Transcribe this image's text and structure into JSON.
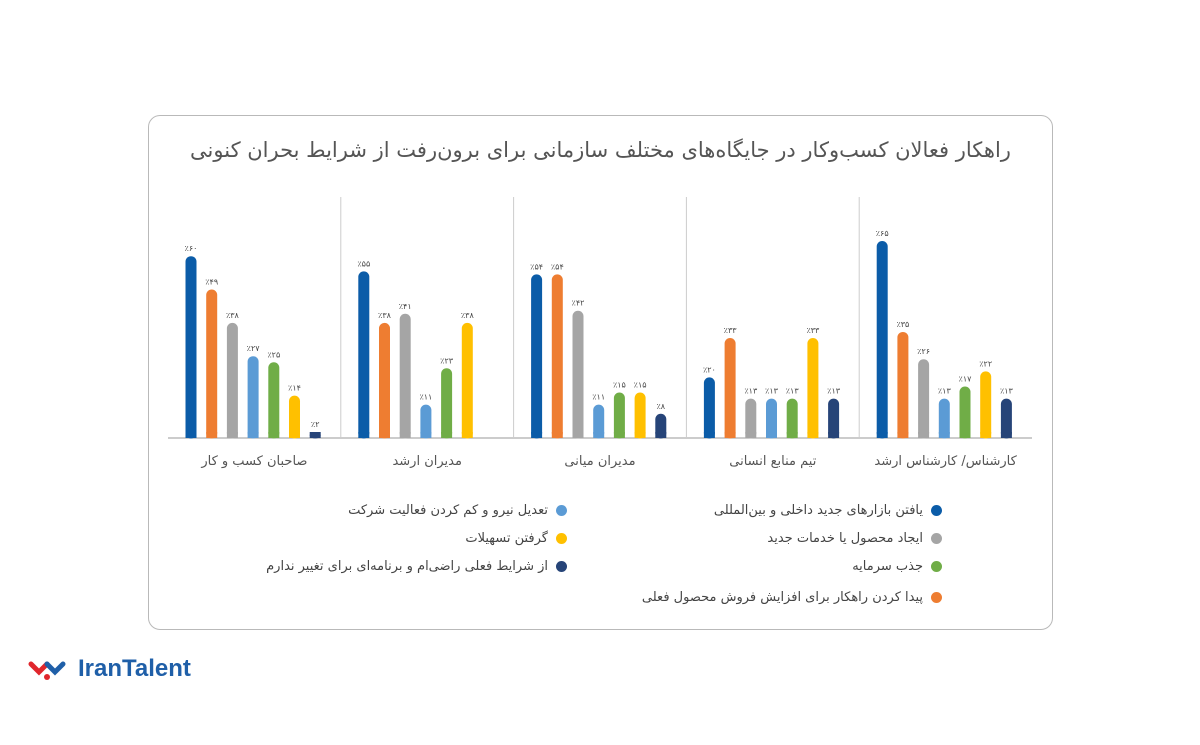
{
  "chart_data": {
    "type": "bar",
    "title": "راهکار فعالان کسب‌وکار در جایگاه‌های مختلف سازمانی برای برون‌رفت از شرایط بحران کنونی",
    "categories": [
      "صاحبان کسب و کار",
      "مدیران ارشد",
      "مدیران میانی",
      "تیم منابع انسانی",
      "کارشناس/ کارشناس ارشد"
    ],
    "unit": "٪",
    "ylim": [
      0,
      70
    ],
    "grid": false,
    "series": [
      {
        "name": "یافتن بازارهای جدید داخلی و بین‌المللی",
        "color": "#0b5ca8",
        "values": [
          60,
          55,
          54,
          20,
          65
        ]
      },
      {
        "name": "پیدا کردن راهکار برای افزایش فروش محصول فعلی",
        "color": "#ee7d31",
        "values": [
          49,
          38,
          54,
          33,
          35
        ]
      },
      {
        "name": "ایجاد محصول یا خدمات جدید",
        "color": "#a5a5a5",
        "values": [
          38,
          41,
          42,
          13,
          26
        ]
      },
      {
        "name": "تعدیل نیرو و کم کردن فعالیت شرکت",
        "color": "#5b9bd5",
        "values": [
          27,
          11,
          11,
          13,
          13
        ]
      },
      {
        "name": "جذب سرمایه",
        "color": "#70ad47",
        "values": [
          25,
          23,
          15,
          13,
          17
        ]
      },
      {
        "name": "گرفتن تسهیلات",
        "color": "#ffc000",
        "values": [
          14,
          38,
          15,
          33,
          22
        ]
      },
      {
        "name": "از شرایط فعلی راضی‌ام و برنامه‌ای برای تغییر ندارم",
        "color": "#264478",
        "values": [
          2,
          null,
          8,
          13,
          13
        ]
      }
    ],
    "legend_placement": "bottom"
  },
  "logo": {
    "text": "IranTalent"
  }
}
